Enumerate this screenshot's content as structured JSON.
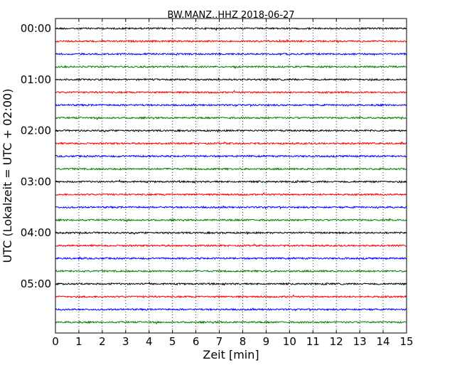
{
  "chart_data": {
    "type": "line",
    "title": "BW.MANZ..HHZ 2018-06-27",
    "xlabel": "Zeit  [min]",
    "ylabel": "UTC (Lokalzeit = UTC + 02:00)",
    "xlim": [
      0,
      15
    ],
    "xticks": [
      "0",
      "1",
      "2",
      "3",
      "4",
      "5",
      "6",
      "7",
      "8",
      "9",
      "10",
      "11",
      "12",
      "13",
      "14",
      "15"
    ],
    "y_tick_labels": [
      "00:00",
      "01:00",
      "02:00",
      "03:00",
      "04:00",
      "05:00"
    ],
    "grid": "vertical dotted",
    "legend": "none",
    "trace_colors": [
      "#000000",
      "#ff0000",
      "#0000ff",
      "#008000"
    ],
    "series": [
      {
        "start": "00:00",
        "values": [
          0,
          0,
          0,
          0
        ]
      },
      {
        "start": "00:15",
        "values": [
          0,
          0,
          0,
          0
        ]
      },
      {
        "start": "00:30",
        "values": [
          0,
          0,
          0,
          0
        ]
      },
      {
        "start": "00:45",
        "values": [
          0,
          0,
          0,
          0
        ]
      },
      {
        "start": "01:00",
        "values": [
          0,
          0,
          0,
          0
        ]
      },
      {
        "start": "01:15",
        "values": [
          0,
          0,
          0,
          0
        ]
      },
      {
        "start": "01:30",
        "values": [
          0,
          0,
          0,
          0
        ]
      },
      {
        "start": "01:45",
        "values": [
          0,
          0,
          0,
          0
        ]
      },
      {
        "start": "02:00",
        "values": [
          0,
          0,
          0,
          0
        ]
      },
      {
        "start": "02:15",
        "values": [
          0,
          0,
          0,
          0
        ]
      },
      {
        "start": "02:30",
        "values": [
          0,
          0,
          0,
          0
        ]
      },
      {
        "start": "02:45",
        "values": [
          0,
          0,
          0,
          0
        ]
      },
      {
        "start": "03:00",
        "values": [
          0,
          0,
          0,
          0
        ]
      },
      {
        "start": "03:15",
        "values": [
          0,
          0,
          0,
          0
        ]
      },
      {
        "start": "03:30",
        "values": [
          0,
          0,
          0,
          0
        ]
      },
      {
        "start": "03:45",
        "values": [
          0,
          0,
          0,
          0
        ]
      },
      {
        "start": "04:00",
        "values": [
          0,
          0,
          0,
          0
        ]
      },
      {
        "start": "04:15",
        "values": [
          0,
          0,
          0,
          0
        ]
      },
      {
        "start": "04:30",
        "values": [
          0,
          0,
          0,
          0
        ]
      },
      {
        "start": "04:45",
        "values": [
          0,
          0,
          0,
          0
        ]
      },
      {
        "start": "05:00",
        "values": [
          0,
          0,
          0,
          0
        ]
      },
      {
        "start": "05:15",
        "values": [
          0,
          0,
          0,
          0
        ]
      },
      {
        "start": "05:30",
        "values": [
          0,
          0,
          0,
          0
        ]
      },
      {
        "start": "05:45",
        "values": [
          0,
          0,
          0,
          0
        ]
      }
    ]
  }
}
